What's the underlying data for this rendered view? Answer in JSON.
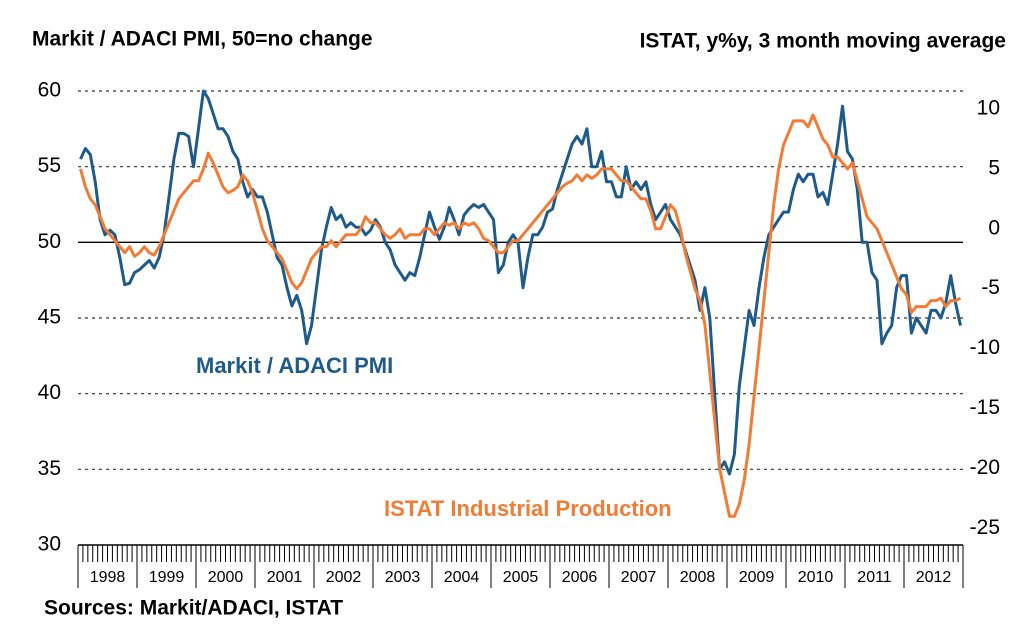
{
  "chart_data": {
    "type": "line",
    "title_left": "Markit / ADACI PMI, 50=no change",
    "title_right": "ISTAT, y%y, 3 month moving average",
    "source": "Sources: Markit/ADACI, ISTAT",
    "annotations": [
      "Markit / ADACI PMI",
      "ISTAT Industrial Production"
    ],
    "reference_line": 50,
    "grid": true,
    "categories": [
      "1998",
      null,
      null,
      null,
      null,
      null,
      null,
      null,
      null,
      null,
      null,
      null,
      "1999",
      null,
      null,
      null,
      null,
      null,
      null,
      null,
      null,
      null,
      null,
      null,
      "2000",
      null,
      null,
      null,
      null,
      null,
      null,
      null,
      null,
      null,
      null,
      null,
      "2001",
      null,
      null,
      null,
      null,
      null,
      null,
      null,
      null,
      null,
      null,
      null,
      "2002",
      null,
      null,
      null,
      null,
      null,
      null,
      null,
      null,
      null,
      null,
      null,
      "2003",
      null,
      null,
      null,
      null,
      null,
      null,
      null,
      null,
      null,
      null,
      null,
      "2004",
      null,
      null,
      null,
      null,
      null,
      null,
      null,
      null,
      null,
      null,
      null,
      "2005",
      null,
      null,
      null,
      null,
      null,
      null,
      null,
      null,
      null,
      null,
      null,
      "2006",
      null,
      null,
      null,
      null,
      null,
      null,
      null,
      null,
      null,
      null,
      null,
      "2007",
      null,
      null,
      null,
      null,
      null,
      null,
      null,
      null,
      null,
      null,
      null,
      "2008",
      null,
      null,
      null,
      null,
      null,
      null,
      null,
      null,
      null,
      null,
      null,
      "2009",
      null,
      null,
      null,
      null,
      null,
      null,
      null,
      null,
      null,
      null,
      null,
      "2010",
      null,
      null,
      null,
      null,
      null,
      null,
      null,
      null,
      null,
      null,
      null,
      "2011",
      null,
      null,
      null,
      null,
      null,
      null,
      null,
      null,
      null,
      null,
      null,
      "2012",
      null,
      null,
      null,
      null,
      null,
      null,
      null,
      null,
      null,
      null,
      null
    ],
    "ylim": [
      30,
      60
    ],
    "yticks": [
      30,
      35,
      40,
      45,
      50,
      55,
      60
    ],
    "y2lim": [
      -26.4,
      11.5
    ],
    "y2ticks": [
      -25,
      -20,
      -15,
      -10,
      -5,
      0,
      5,
      10
    ],
    "series": [
      {
        "name": "Markit / ADACI PMI",
        "color": "#1f5b8a",
        "values": [
          55.5,
          56.2,
          55.8,
          54,
          51.5,
          50.5,
          50.8,
          50.5,
          49,
          47.2,
          47.3,
          48,
          48.2,
          48.5,
          48.8,
          48.3,
          49,
          50.5,
          53,
          55.5,
          57.2,
          57.2,
          57,
          55,
          57.5,
          60,
          59.5,
          58.5,
          57.5,
          57.5,
          57,
          56,
          55.5,
          54,
          53,
          53.5,
          53,
          53,
          52,
          50.5,
          49,
          48.5,
          47,
          45.8,
          46.5,
          45.5,
          43.3,
          44.5,
          47,
          49.5,
          51,
          52.3,
          51.5,
          51.8,
          51,
          51.3,
          51,
          51,
          50.5,
          50.8,
          51.5,
          51,
          50,
          49.5,
          48.5,
          48,
          47.5,
          48,
          47.8,
          49,
          50.5,
          52,
          51,
          50.2,
          51,
          52.3,
          51.5,
          50.5,
          51.8,
          52.2,
          52.5,
          52.3,
          52.5,
          52,
          51.5,
          48,
          48.5,
          50,
          50.5,
          50,
          47,
          49,
          50.5,
          50.5,
          51,
          52,
          52.2,
          53.5,
          54.5,
          55.5,
          56.5,
          57,
          56.5,
          57.5,
          55,
          55,
          56,
          54,
          54,
          53,
          53,
          55,
          53.5,
          54,
          53.5,
          54,
          52.5,
          51.5,
          52,
          52.5,
          51.5,
          51,
          50.5,
          49.5,
          48.5,
          47.5,
          45.5,
          47,
          45,
          40,
          35,
          35.5,
          34.7,
          36,
          40.5,
          43,
          45.5,
          44.5,
          47,
          49,
          50.5,
          51,
          51.5,
          52,
          52,
          53.5,
          54.5,
          54,
          54.5,
          54.5,
          53,
          53.3,
          52.5,
          54.5,
          56.5,
          59,
          56,
          55.5,
          53.5,
          50,
          50,
          48,
          47.5,
          43.3,
          44,
          44.5,
          47,
          47.8,
          47.8,
          44,
          45,
          44.5,
          44,
          45.5,
          45.5,
          45,
          46,
          47.8,
          46,
          44.5
        ]
      },
      {
        "name": "ISTAT Industrial Production",
        "color": "#f07c36",
        "axis": "y2",
        "values": [
          5,
          3.5,
          2.5,
          2,
          1,
          0,
          -0.5,
          -1,
          -1.5,
          -2,
          -1.5,
          -2.3,
          -2,
          -1.5,
          -2,
          -2.2,
          -1.5,
          -0.5,
          0.5,
          1.5,
          2.5,
          3,
          3.5,
          4,
          4,
          5,
          6.3,
          5.5,
          4.5,
          3.5,
          3,
          3.2,
          3.5,
          4.5,
          4,
          3,
          1.5,
          0,
          -1,
          -1.5,
          -2,
          -2.5,
          -3.5,
          -4.5,
          -5,
          -4.5,
          -3.5,
          -2.5,
          -2,
          -1.5,
          -1.5,
          -1,
          -1.5,
          -1,
          -0.5,
          -0.5,
          -0.5,
          0,
          1,
          0.5,
          0.5,
          0,
          -0.5,
          -0.8,
          -0.5,
          0,
          -0.8,
          -0.5,
          -0.5,
          -0.5,
          0,
          0,
          -0.5,
          0,
          0.5,
          0.3,
          0.5,
          0,
          0.5,
          0.3,
          0.5,
          0,
          -0.8,
          -1,
          -1.5,
          -2,
          -2,
          -1.5,
          -1,
          -1,
          -0.5,
          0,
          0.5,
          1,
          1.5,
          2,
          2.5,
          3,
          3.5,
          3.8,
          4,
          4.5,
          4,
          4.5,
          4.2,
          4.5,
          5,
          5,
          5,
          4.5,
          4,
          4,
          3.5,
          3,
          2.5,
          2.5,
          1.5,
          0,
          0,
          1,
          2,
          1.5,
          0,
          -2,
          -3.5,
          -5,
          -6,
          -8,
          -12,
          -16,
          -20,
          -22,
          -24,
          -24,
          -23,
          -21,
          -18,
          -14,
          -10,
          -6,
          -2,
          2,
          5,
          7,
          8,
          9,
          9,
          9,
          8.5,
          9.5,
          8.5,
          7.5,
          7,
          6,
          6,
          5.5,
          5,
          5.5,
          4,
          2.5,
          1,
          0.5,
          0,
          -1,
          -2,
          -3,
          -4,
          -5,
          -5.5,
          -7,
          -6.5,
          -6.5,
          -6.5,
          -6,
          -6,
          -5.8,
          -6.5,
          -6,
          -6,
          -5.8
        ]
      }
    ]
  }
}
